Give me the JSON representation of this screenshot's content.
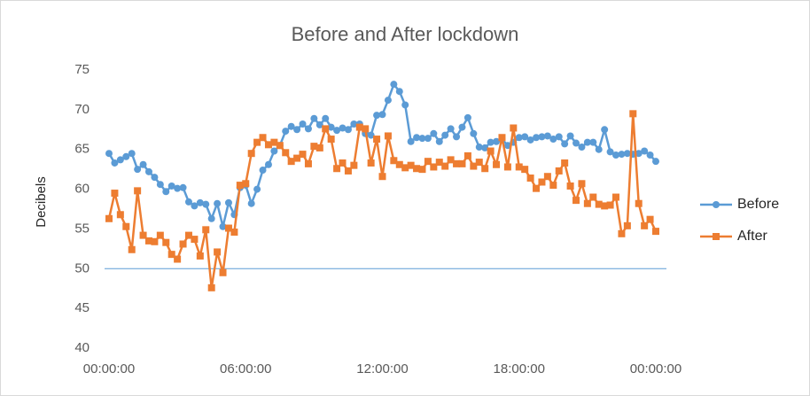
{
  "chart_data": {
    "type": "line",
    "title": "Before and After lockdown",
    "y_label": "Decibels",
    "x": [
      0,
      0.25,
      0.5,
      0.75,
      1,
      1.25,
      1.5,
      1.75,
      2,
      2.25,
      2.5,
      2.75,
      3,
      3.25,
      3.5,
      3.75,
      4,
      4.25,
      4.5,
      4.75,
      5,
      5.25,
      5.5,
      5.75,
      6,
      6.25,
      6.5,
      6.75,
      7,
      7.25,
      7.5,
      7.75,
      8,
      8.25,
      8.5,
      8.75,
      9,
      9.25,
      9.5,
      9.75,
      10,
      10.25,
      10.5,
      10.75,
      11,
      11.25,
      11.5,
      11.75,
      12,
      12.25,
      12.5,
      12.75,
      13,
      13.25,
      13.5,
      13.75,
      14,
      14.25,
      14.5,
      14.75,
      15,
      15.25,
      15.5,
      15.75,
      16,
      16.25,
      16.5,
      16.75,
      17,
      17.25,
      17.5,
      17.75,
      18,
      18.25,
      18.5,
      18.75,
      19,
      19.25,
      19.5,
      19.75,
      20,
      20.25,
      20.5,
      20.75,
      21,
      21.25,
      21.5,
      21.75,
      22,
      22.25,
      22.5,
      22.75,
      23,
      23.25,
      23.5,
      23.75,
      24
    ],
    "series": [
      {
        "name": "Before",
        "color": "#5b9bd5",
        "marker": "circle",
        "values": [
          64.5,
          63.3,
          63.7,
          64.1,
          64.5,
          62.5,
          63.1,
          62.2,
          61.5,
          60.6,
          59.7,
          60.4,
          60.1,
          60.2,
          58.4,
          57.9,
          58.3,
          58.1,
          56.3,
          58.2,
          55.3,
          58.3,
          56.8,
          60.2,
          60.5,
          58.2,
          60.0,
          62.4,
          63.1,
          64.8,
          65.5,
          67.3,
          67.9,
          67.5,
          68.2,
          67.6,
          68.9,
          68.1,
          68.9,
          67.8,
          67.4,
          67.7,
          67.5,
          68.2,
          68.2,
          67.0,
          66.8,
          69.3,
          69.4,
          71.2,
          73.2,
          72.3,
          70.6,
          66.0,
          66.5,
          66.4,
          66.4,
          67.0,
          66.0,
          66.8,
          67.6,
          66.6,
          67.8,
          69.0,
          67.0,
          65.3,
          65.2,
          65.9,
          66.0,
          66.3,
          65.5,
          65.9,
          66.5,
          66.6,
          66.2,
          66.5,
          66.6,
          66.7,
          66.3,
          66.6,
          65.7,
          66.7,
          65.8,
          65.3,
          65.9,
          65.9,
          65.0,
          67.5,
          64.7,
          64.3,
          64.4,
          64.5,
          64.4,
          64.5,
          64.8,
          64.3,
          63.5
        ]
      },
      {
        "name": "After",
        "color": "#ed7d31",
        "marker": "square",
        "values": [
          56.3,
          59.5,
          56.8,
          55.3,
          52.4,
          59.8,
          54.2,
          53.5,
          53.4,
          54.2,
          53.3,
          51.8,
          51.2,
          53.1,
          54.2,
          53.7,
          51.6,
          54.9,
          47.6,
          52.1,
          49.5,
          55.1,
          54.6,
          60.5,
          60.7,
          64.5,
          65.9,
          66.5,
          65.6,
          65.9,
          65.5,
          64.6,
          63.5,
          63.9,
          64.4,
          63.2,
          65.4,
          65.2,
          67.6,
          66.3,
          62.6,
          63.3,
          62.3,
          63.0,
          67.8,
          67.6,
          63.3,
          66.3,
          61.6,
          66.7,
          63.6,
          63.1,
          62.7,
          63.0,
          62.6,
          62.5,
          63.5,
          62.8,
          63.4,
          62.9,
          63.7,
          63.2,
          63.2,
          64.2,
          62.9,
          63.4,
          62.6,
          64.8,
          63.1,
          66.5,
          62.8,
          67.7,
          62.8,
          62.5,
          61.4,
          60.1,
          60.9,
          61.6,
          60.5,
          62.3,
          63.3,
          60.4,
          58.6,
          60.7,
          58.2,
          59.0,
          58.1,
          57.9,
          58.0,
          59.0,
          54.4,
          55.4,
          69.5,
          58.2,
          55.4,
          56.2,
          54.7
        ]
      }
    ],
    "xlim": [
      0,
      24
    ],
    "xticks": [
      {
        "value": 0,
        "label": "00:00:00"
      },
      {
        "value": 6,
        "label": "06:00:00"
      },
      {
        "value": 12,
        "label": "12:00:00"
      },
      {
        "value": 18,
        "label": "18:00:00"
      },
      {
        "value": 24,
        "label": "00:00:00"
      }
    ],
    "ylim": [
      40,
      75
    ],
    "yticks": [
      40,
      45,
      50,
      55,
      60,
      65,
      70,
      75
    ],
    "axis_line": 50,
    "axis_line_color": "#5b9bd5",
    "legend": "right",
    "grid": false
  }
}
